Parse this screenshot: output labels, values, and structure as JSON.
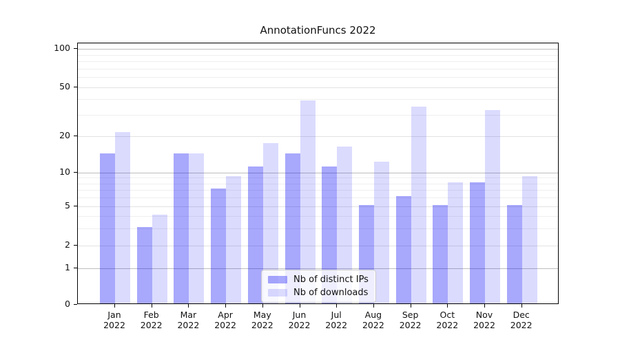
{
  "chart_data": {
    "type": "bar",
    "title": "AnnotationFuncs 2022",
    "categories": [
      "Jan",
      "Feb",
      "Mar",
      "Apr",
      "May",
      "Jun",
      "Jul",
      "Aug",
      "Sep",
      "Oct",
      "Nov",
      "Dec"
    ],
    "year": "2022",
    "series": [
      {
        "name": "Nb of distinct IPs",
        "color": "rgba(0,0,245,0.34)",
        "color_hex_on_white": "#a9a9f8",
        "values": [
          14,
          3,
          14,
          7,
          11,
          14,
          11,
          5,
          6,
          5,
          8,
          5
        ]
      },
      {
        "name": "Nb of downloads",
        "color": "rgba(0,0,245,0.14)",
        "color_hex_on_white": "#dcdcfa",
        "values": [
          21,
          4,
          14,
          9,
          17,
          38,
          16,
          12,
          34,
          8,
          32,
          9
        ]
      }
    ],
    "xlabel": "",
    "ylabel": "",
    "y_scale": "symlog",
    "y_tick_labels": [
      "0",
      "1",
      "2",
      "5",
      "10",
      "20",
      "50",
      "100"
    ],
    "y_ticks": [
      0,
      1,
      2,
      5,
      10,
      20,
      50,
      100
    ],
    "y_minor_ticks": [
      3,
      4,
      6,
      7,
      8,
      9,
      30,
      40,
      60,
      70,
      80,
      90
    ],
    "ylim": [
      0,
      110
    ],
    "grid": true,
    "legend_position": "lower center"
  }
}
